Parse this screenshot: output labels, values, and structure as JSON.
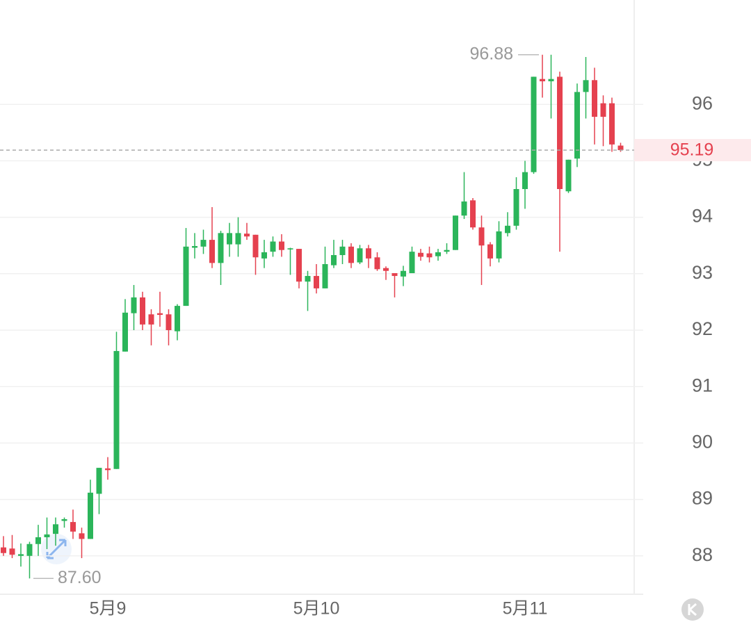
{
  "chart_data": {
    "type": "candlestick",
    "categories": [
      null,
      null,
      null,
      null,
      null,
      null,
      null,
      null,
      null,
      null,
      null,
      null,
      "5月9",
      null,
      null,
      null,
      null,
      null,
      null,
      null,
      null,
      null,
      null,
      null,
      null,
      null,
      null,
      null,
      null,
      null,
      null,
      null,
      null,
      null,
      null,
      null,
      "5月10",
      null,
      null,
      null,
      null,
      null,
      null,
      null,
      null,
      null,
      null,
      null,
      null,
      null,
      null,
      null,
      null,
      null,
      null,
      null,
      null,
      null,
      null,
      null,
      "5月11",
      null,
      null,
      null,
      null,
      null,
      null,
      null,
      null,
      null,
      null,
      null
    ],
    "open": [
      88.15,
      88.13,
      88.0,
      88.0,
      88.21,
      88.33,
      88.39,
      88.62,
      88.6,
      88.4,
      88.3,
      89.1,
      89.55,
      89.54,
      91.62,
      92.3,
      92.58,
      92.28,
      92.3,
      92.28,
      91.98,
      92.43,
      93.46,
      93.48,
      93.6,
      93.19,
      93.52,
      93.52,
      93.71,
      93.69,
      93.27,
      93.39,
      93.57,
      93.43,
      93.44,
      92.86,
      92.96,
      92.74,
      93.15,
      93.33,
      93.48,
      93.2,
      93.45,
      93.29,
      93.1,
      93.01,
      92.95,
      93.01,
      93.37,
      93.36,
      93.31,
      93.39,
      93.42,
      94.03,
      94.3,
      93.82,
      93.52,
      93.27,
      93.72,
      93.85,
      94.5,
      94.8,
      96.45,
      96.41,
      96.49,
      94.46,
      95.04,
      96.22,
      96.43,
      96.02,
      96.02,
      95.27
    ],
    "high": [
      88.35,
      88.37,
      88.22,
      88.25,
      88.55,
      88.68,
      88.68,
      88.68,
      88.82,
      88.5,
      89.35,
      89.56,
      89.75,
      91.97,
      92.55,
      92.8,
      92.68,
      92.37,
      92.68,
      92.37,
      92.46,
      93.81,
      93.72,
      93.78,
      94.18,
      93.76,
      93.9,
      94.0,
      93.9,
      93.69,
      93.6,
      93.66,
      93.7,
      93.46,
      93.44,
      93.05,
      93.17,
      93.48,
      93.6,
      93.6,
      93.54,
      93.51,
      93.51,
      93.38,
      93.13,
      93.01,
      93.14,
      93.48,
      93.44,
      93.48,
      93.44,
      93.54,
      94.03,
      94.8,
      94.34,
      94.03,
      93.56,
      93.93,
      94.09,
      94.71,
      95.0,
      96.49,
      96.88,
      96.88,
      96.58,
      95.02,
      96.37,
      96.84,
      96.65,
      96.16,
      96.12,
      95.32
    ],
    "low": [
      88.0,
      87.96,
      87.81,
      87.6,
      88.0,
      88.12,
      88.18,
      88.5,
      88.3,
      87.96,
      88.3,
      88.74,
      89.35,
      89.54,
      91.62,
      92.0,
      92.0,
      91.73,
      92.06,
      91.73,
      91.82,
      92.43,
      93.27,
      93.35,
      93.1,
      92.8,
      93.3,
      93.3,
      93.6,
      92.98,
      93.1,
      93.3,
      93.3,
      92.98,
      92.74,
      92.34,
      92.65,
      92.74,
      93.1,
      93.17,
      93.1,
      93.17,
      93.1,
      93.05,
      92.89,
      92.58,
      92.78,
      93.01,
      93.23,
      93.2,
      93.23,
      93.35,
      93.42,
      93.97,
      93.78,
      92.8,
      93.13,
      93.2,
      93.66,
      93.78,
      94.15,
      94.77,
      96.12,
      95.75,
      93.39,
      94.43,
      94.89,
      95.75,
      95.29,
      95.26,
      95.16,
      95.16
    ],
    "close": [
      88.05,
      88.02,
      88.03,
      88.21,
      88.33,
      88.38,
      88.56,
      88.65,
      88.43,
      88.3,
      89.12,
      89.56,
      89.52,
      91.63,
      92.31,
      92.58,
      92.1,
      92.1,
      92.27,
      92.0,
      92.43,
      93.48,
      93.49,
      93.6,
      93.19,
      93.72,
      93.72,
      93.72,
      93.66,
      93.29,
      93.38,
      93.57,
      93.42,
      93.45,
      92.86,
      92.96,
      92.74,
      93.17,
      93.33,
      93.48,
      93.19,
      93.45,
      93.27,
      93.08,
      93.05,
      92.96,
      93.05,
      93.39,
      93.3,
      93.29,
      93.38,
      93.42,
      94.03,
      94.28,
      93.82,
      93.5,
      93.27,
      93.75,
      93.85,
      94.5,
      94.8,
      96.49,
      96.41,
      96.45,
      94.5,
      95.02,
      96.22,
      96.43,
      95.78,
      95.78,
      95.29,
      95.19
    ],
    "up_color": "#2bb55a",
    "down_color": "#e5414f",
    "ylim": [
      87.32,
      97.85
    ],
    "yticks": [
      88,
      89,
      90,
      91,
      92,
      93,
      94,
      95,
      96
    ],
    "grid": true,
    "markers": {
      "high": {
        "value": 96.88,
        "label": "96.88"
      },
      "low": {
        "value": 87.6,
        "label": "87.60"
      },
      "last": {
        "value": 95.19,
        "label": "95.19"
      }
    }
  }
}
